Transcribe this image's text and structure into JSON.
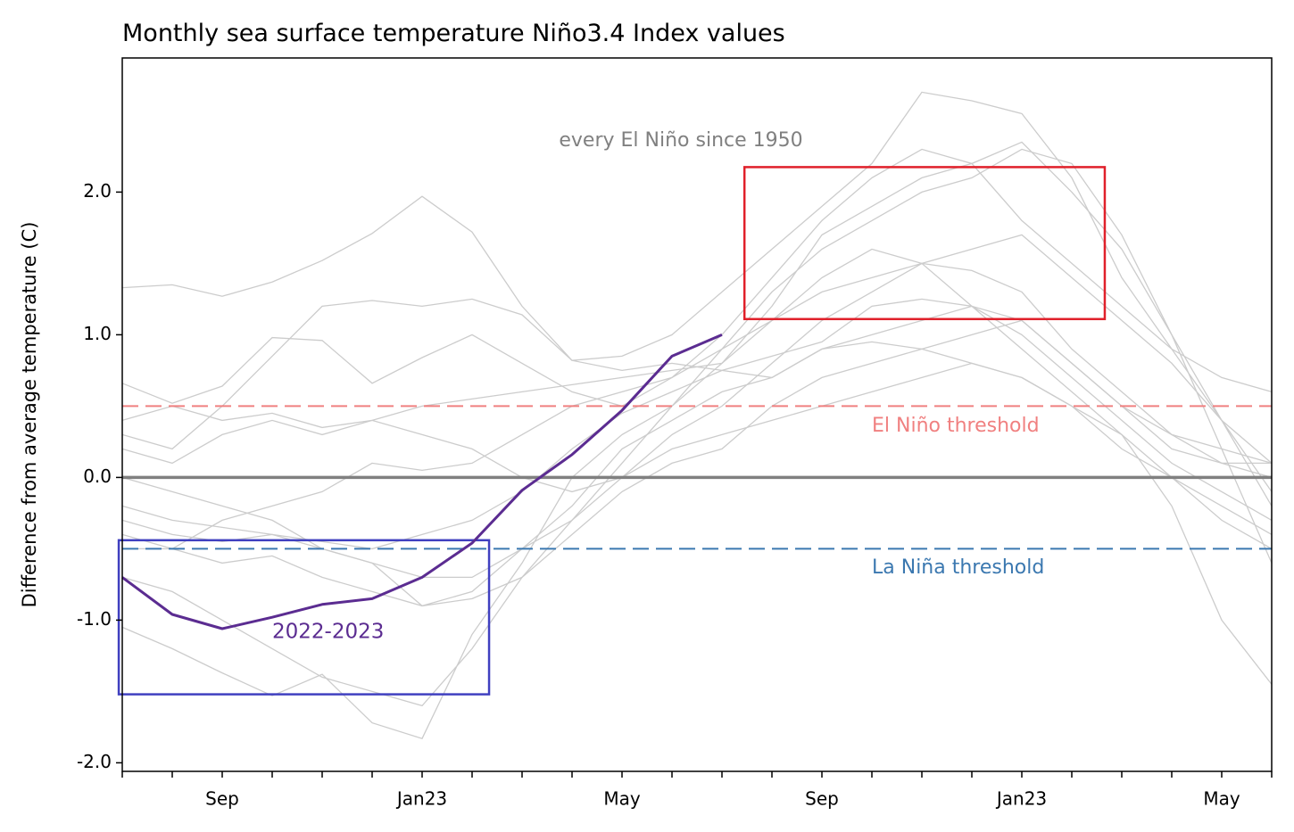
{
  "chart_data": {
    "type": "line",
    "title": "Monthly sea surface temperature Niño3.4 Index values",
    "y_label": "Difference from average temperature (C)",
    "categories": [
      null,
      null,
      "Sep",
      null,
      null,
      null,
      "Jan23",
      null,
      null,
      null,
      "May",
      null,
      null,
      null,
      "Sep",
      null,
      null,
      null,
      "Jan23",
      null,
      null,
      null,
      "May",
      null
    ],
    "ylim": [
      -2.06,
      2.94
    ],
    "yticks": [
      {
        "value": -2,
        "label": "-2.0"
      },
      {
        "value": -1,
        "label": "-1.0"
      },
      {
        "value": 0,
        "label": "0.0"
      },
      {
        "value": 1,
        "label": "1.0"
      },
      {
        "value": 2,
        "label": "2.0"
      }
    ],
    "series": [
      {
        "name": "2022-2023",
        "color": "#5b2c91",
        "values": [
          -0.7,
          -0.96,
          -1.06,
          -0.98,
          -0.89,
          -0.85,
          -0.7,
          -0.46,
          -0.09,
          0.16,
          0.47,
          0.85,
          1.0,
          null,
          null,
          null,
          null,
          null,
          null,
          null,
          null,
          null,
          null,
          null
        ]
      }
    ],
    "background_label": "every El Niño since 1950",
    "background_series": {
      "color": "#cccccc",
      "values": [
        [
          1.33,
          1.35,
          1.27,
          1.37,
          1.52,
          1.71,
          1.97,
          1.72,
          1.2,
          0.82,
          0.85,
          1.0,
          1.3,
          1.6,
          1.9,
          2.2,
          2.7,
          2.64,
          2.55,
          2.1,
          1.4,
          0.9,
          0.7,
          0.6
        ],
        [
          0.66,
          0.52,
          0.64,
          0.98,
          0.96,
          0.66,
          0.84,
          1.0,
          0.8,
          0.6,
          0.5,
          0.7,
          1.0,
          1.4,
          1.8,
          2.1,
          2.3,
          2.2,
          2.35,
          2.0,
          1.6,
          1.0,
          0.4,
          -0.2
        ],
        [
          -1.05,
          -1.2,
          -1.37,
          -1.53,
          -1.38,
          -1.72,
          -1.83,
          -1.1,
          -0.6,
          0.0,
          0.3,
          0.5,
          0.9,
          1.3,
          1.6,
          1.8,
          2.0,
          2.1,
          2.3,
          2.2,
          1.7,
          1.0,
          0.2,
          -0.6
        ],
        [
          -0.7,
          -0.8,
          -1.0,
          -1.2,
          -1.4,
          -1.5,
          -1.6,
          -1.2,
          -0.7,
          -0.3,
          0.1,
          0.5,
          0.8,
          1.1,
          1.4,
          1.6,
          1.5,
          1.2,
          0.9,
          0.6,
          0.3,
          -0.2,
          -1.0,
          -1.45
        ],
        [
          0.3,
          0.2,
          0.5,
          0.85,
          1.2,
          1.24,
          1.2,
          1.25,
          1.14,
          0.82,
          0.75,
          0.8,
          0.75,
          0.7,
          0.9,
          1.0,
          1.1,
          1.2,
          1.1,
          0.8,
          0.5,
          0.2,
          0.1,
          0.1
        ],
        [
          -0.3,
          -0.4,
          -0.45,
          -0.4,
          -0.5,
          -0.6,
          -0.9,
          -0.8,
          -0.5,
          -0.2,
          0.2,
          0.4,
          0.6,
          0.7,
          0.9,
          0.95,
          0.9,
          0.8,
          0.7,
          0.5,
          0.3,
          0.0,
          -0.3,
          -0.5
        ],
        [
          0.2,
          0.1,
          0.3,
          0.4,
          0.3,
          0.4,
          0.3,
          0.2,
          0.0,
          -0.1,
          0.0,
          0.3,
          0.5,
          0.8,
          1.1,
          1.3,
          1.5,
          1.6,
          1.7,
          1.4,
          1.1,
          0.8,
          0.4,
          0.1
        ],
        [
          -0.4,
          -0.5,
          -0.3,
          -0.2,
          -0.1,
          0.1,
          0.05,
          0.1,
          0.3,
          0.5,
          0.6,
          0.7,
          0.9,
          1.1,
          1.3,
          1.4,
          1.5,
          1.45,
          1.3,
          0.9,
          0.6,
          0.3,
          0.2,
          0.1
        ],
        [
          0.0,
          -0.1,
          -0.2,
          -0.3,
          -0.5,
          -0.6,
          -0.7,
          -0.7,
          -0.5,
          -0.3,
          0.0,
          0.2,
          0.3,
          0.4,
          0.5,
          0.6,
          0.7,
          0.8,
          0.7,
          0.5,
          0.2,
          0.0,
          -0.2,
          -0.4
        ],
        [
          -0.2,
          -0.3,
          -0.35,
          -0.4,
          -0.45,
          -0.5,
          -0.4,
          -0.3,
          -0.1,
          0.2,
          0.45,
          0.6,
          0.75,
          0.85,
          0.95,
          1.2,
          1.25,
          1.2,
          1.0,
          0.7,
          0.4,
          0.1,
          -0.1,
          -0.3
        ],
        [
          0.4,
          0.5,
          0.4,
          0.45,
          0.35,
          0.4,
          0.5,
          0.55,
          0.6,
          0.65,
          0.7,
          0.75,
          0.8,
          1.2,
          1.7,
          1.9,
          2.1,
          2.2,
          1.8,
          1.5,
          1.2,
          0.9,
          0.4,
          -0.1
        ],
        [
          -0.5,
          -0.5,
          -0.6,
          -0.55,
          -0.7,
          -0.8,
          -0.9,
          -0.85,
          -0.7,
          -0.4,
          -0.1,
          0.1,
          0.2,
          0.5,
          0.7,
          0.8,
          0.9,
          1.0,
          1.1,
          0.8,
          0.5,
          0.3,
          0.1,
          0.0
        ]
      ]
    },
    "reference_line": {
      "value": 0,
      "color": "#808080"
    },
    "thresholds": [
      {
        "label": "El Niño threshold",
        "value": 0.5,
        "color": "#f08080"
      },
      {
        "label": "La Niña threshold",
        "value": -0.5,
        "color": "#3b78b0"
      }
    ],
    "highlight_boxes": [
      {
        "color": "#e0202a",
        "xlim": [
          12.45,
          19.66
        ],
        "ylim": [
          1.11,
          2.175
        ]
      },
      {
        "color": "#4040c0",
        "xlim": [
          -0.07,
          7.34
        ],
        "ylim": [
          -1.52,
          -0.44
        ]
      }
    ]
  }
}
